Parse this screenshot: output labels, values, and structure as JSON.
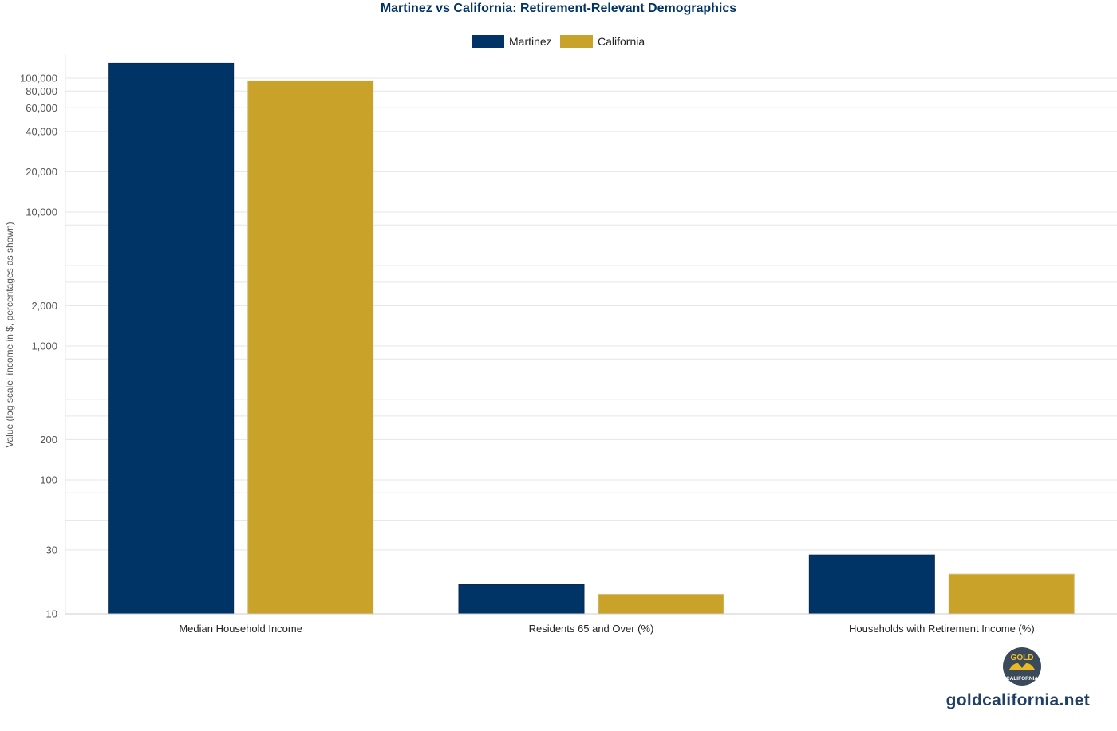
{
  "colors": {
    "martinez": "#003366",
    "california": "#C9A22A",
    "title": "#003366",
    "grid": "#e5e5e5",
    "tick_text": "#555555",
    "category_text": "#222222",
    "brand": "#1f3f66"
  },
  "brand": {
    "logo_top": "GOLD",
    "logo_bottom": "CALIFORNIA",
    "url": "goldcalifornia.net"
  },
  "chart_data": {
    "type": "bar",
    "title": "Martinez vs California: Retirement-Relevant Demographics",
    "ylabel": "Value (log scale; income in $, percentages as shown)",
    "xlabel": "",
    "y_scale": "log",
    "ylim": [
      10,
      160000
    ],
    "grid": true,
    "legend_position": "top-center",
    "y_ticks": [
      {
        "value": 10,
        "label": "10"
      },
      {
        "value": 30,
        "label": "30"
      },
      {
        "value": 100,
        "label": "100"
      },
      {
        "value": 200,
        "label": "200"
      },
      {
        "value": 1000,
        "label": "1,000"
      },
      {
        "value": 2000,
        "label": "2,000"
      },
      {
        "value": 10000,
        "label": "10,000"
      },
      {
        "value": 20000,
        "label": "20,000"
      },
      {
        "value": 40000,
        "label": "40,000"
      },
      {
        "value": 60000,
        "label": "60,000"
      },
      {
        "value": 80000,
        "label": "80,000"
      },
      {
        "value": 100000,
        "label": "100,000"
      }
    ],
    "minor_grid": [
      50,
      80,
      300,
      400,
      800,
      3000,
      4000,
      8000
    ],
    "categories": [
      "Median Household Income",
      "Residents 65 and Over (%)",
      "Households with Retirement Income (%)"
    ],
    "series": [
      {
        "name": "Martinez",
        "values": [
          129000,
          16.5,
          27.5
        ]
      },
      {
        "name": "California",
        "values": [
          95500,
          14,
          19.8
        ]
      }
    ]
  }
}
